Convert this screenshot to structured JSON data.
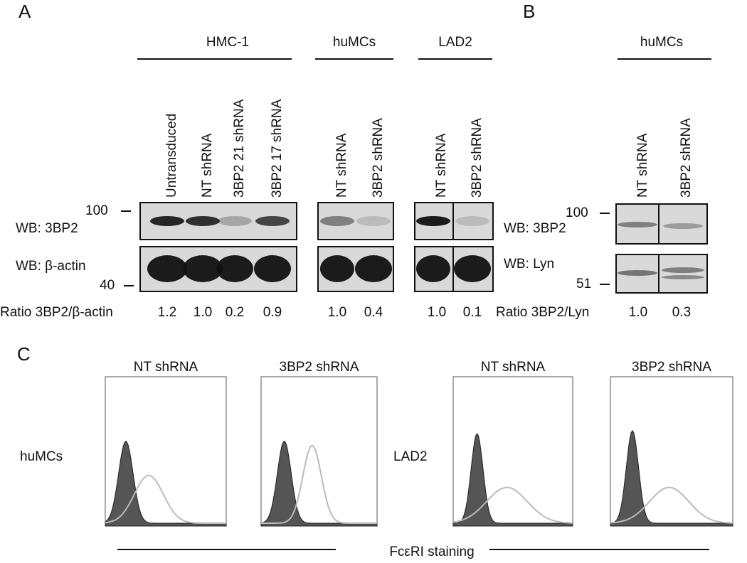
{
  "panel_a": {
    "label": "A",
    "groups": [
      {
        "title": "HMC-1",
        "lanes": [
          "Untransduced",
          "NT  shRNA",
          "3BP2 21 shRNA",
          "3BP2 17 shRNA"
        ],
        "ratios": [
          "1.2",
          "1.0",
          "0.2",
          "0.9"
        ]
      },
      {
        "title": "huMCs",
        "lanes": [
          "NT shRNA",
          "3BP2 shRNA"
        ],
        "ratios": [
          "1.0",
          "0.4"
        ]
      },
      {
        "title": "LAD2",
        "lanes": [
          "NT shRNA",
          "3BP2 shRNA"
        ],
        "ratios": [
          "1.0",
          "0.1"
        ]
      }
    ],
    "markers": [
      "100",
      "40"
    ],
    "blot_labels": [
      "WB: 3BP2",
      "WB: β-actin"
    ],
    "ratio_label": "Ratio 3BP2/β-actin"
  },
  "panel_b": {
    "label": "B",
    "title": "huMCs",
    "lanes": [
      "NT shRNA",
      "3BP2 shRNA"
    ],
    "ratios": [
      "1.0",
      "0.3"
    ],
    "markers": [
      "100",
      "51"
    ],
    "blot_labels": [
      "WB: 3BP2",
      "WB: Lyn"
    ],
    "ratio_label": "Ratio 3BP2/Lyn"
  },
  "panel_c": {
    "label": "C",
    "column_titles": [
      "NT shRNA",
      "3BP2 shRNA",
      "NT shRNA",
      "3BP2 shRNA"
    ],
    "row_labels": [
      "huMCs",
      "LAD2"
    ],
    "x_label": "FcεRI staining"
  }
}
